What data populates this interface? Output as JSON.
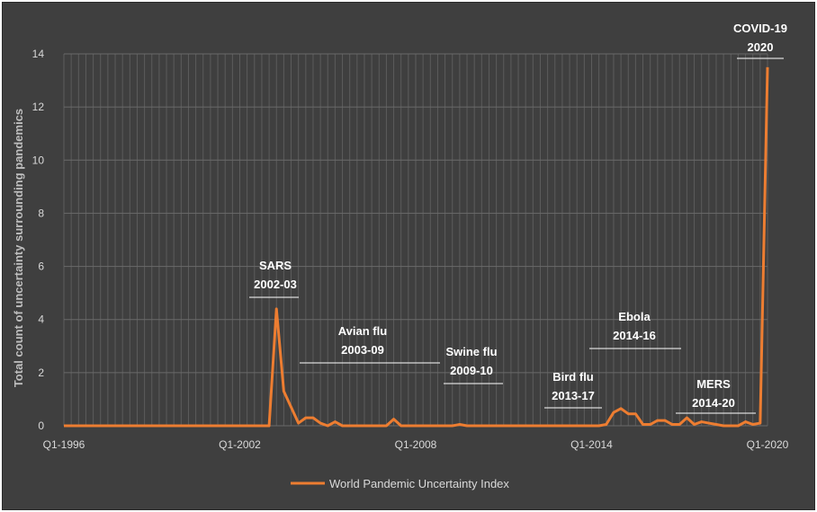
{
  "chart_data": {
    "type": "line",
    "ylabel": "Total count of uncertainty surrounding pandemics",
    "xlabel": "",
    "ylim": [
      0,
      14
    ],
    "yticks": [
      0,
      2,
      4,
      6,
      8,
      10,
      12,
      14
    ],
    "xtick_labels": [
      "Q1-1996",
      "Q1-2002",
      "Q1-2008",
      "Q1-2014",
      "Q1-2020"
    ],
    "xtick_quarter_index": [
      0,
      24,
      48,
      72,
      96
    ],
    "grid": "vertical and horizontal",
    "legend_position": "bottom",
    "line_color": "#ed7d31",
    "series": [
      {
        "name": "World Pandemic Uncertainty Index",
        "x": [
          "Q1-1996",
          "Q2-1996",
          "Q3-1996",
          "Q4-1996",
          "Q1-1997",
          "Q2-1997",
          "Q3-1997",
          "Q4-1997",
          "Q1-1998",
          "Q2-1998",
          "Q3-1998",
          "Q4-1998",
          "Q1-1999",
          "Q2-1999",
          "Q3-1999",
          "Q4-1999",
          "Q1-2000",
          "Q2-2000",
          "Q3-2000",
          "Q4-2000",
          "Q1-2001",
          "Q2-2001",
          "Q3-2001",
          "Q4-2001",
          "Q1-2002",
          "Q2-2002",
          "Q3-2002",
          "Q4-2002",
          "Q1-2003",
          "Q2-2003",
          "Q3-2003",
          "Q4-2003",
          "Q1-2004",
          "Q2-2004",
          "Q3-2004",
          "Q4-2004",
          "Q1-2005",
          "Q2-2005",
          "Q3-2005",
          "Q4-2005",
          "Q1-2006",
          "Q2-2006",
          "Q3-2006",
          "Q4-2006",
          "Q1-2007",
          "Q2-2007",
          "Q3-2007",
          "Q4-2007",
          "Q1-2008",
          "Q2-2008",
          "Q3-2008",
          "Q4-2008",
          "Q1-2009",
          "Q2-2009",
          "Q3-2009",
          "Q4-2009",
          "Q1-2010",
          "Q2-2010",
          "Q3-2010",
          "Q4-2010",
          "Q1-2011",
          "Q2-2011",
          "Q3-2011",
          "Q4-2011",
          "Q1-2012",
          "Q2-2012",
          "Q3-2012",
          "Q4-2012",
          "Q1-2013",
          "Q2-2013",
          "Q3-2013",
          "Q4-2013",
          "Q1-2014",
          "Q2-2014",
          "Q3-2014",
          "Q4-2014",
          "Q1-2015",
          "Q2-2015",
          "Q3-2015",
          "Q4-2015",
          "Q1-2016",
          "Q2-2016",
          "Q3-2016",
          "Q4-2016",
          "Q1-2017",
          "Q2-2017",
          "Q3-2017",
          "Q4-2017",
          "Q1-2018",
          "Q2-2018",
          "Q3-2018",
          "Q4-2018",
          "Q1-2019",
          "Q2-2019",
          "Q3-2019",
          "Q4-2019",
          "Q1-2020"
        ],
        "values": [
          0,
          0,
          0,
          0,
          0,
          0,
          0,
          0,
          0,
          0,
          0,
          0,
          0,
          0,
          0,
          0,
          0,
          0,
          0,
          0,
          0,
          0,
          0,
          0,
          0,
          0,
          0,
          0,
          0,
          4.4,
          1.3,
          0.7,
          0.1,
          0.3,
          0.3,
          0.1,
          0,
          0.15,
          0,
          0,
          0,
          0,
          0,
          0,
          0,
          0.25,
          0,
          0,
          0,
          0,
          0,
          0,
          0,
          0,
          0.05,
          0,
          0,
          0,
          0,
          0,
          0,
          0,
          0,
          0,
          0,
          0,
          0,
          0,
          0,
          0,
          0,
          0,
          0,
          0,
          0.05,
          0.5,
          0.65,
          0.45,
          0.45,
          0.05,
          0.05,
          0.2,
          0.2,
          0.05,
          0.05,
          0.3,
          0.05,
          0.15,
          0.1,
          0.05,
          0,
          0,
          0,
          0.15,
          0.05,
          0.1,
          13.5
        ]
      }
    ],
    "annotations": [
      {
        "line1": "SARS",
        "line2": "2002-03"
      },
      {
        "line1": "Avian flu",
        "line2": "2003-09"
      },
      {
        "line1": "Swine flu",
        "line2": "2009-10"
      },
      {
        "line1": "Bird flu",
        "line2": "2013-17"
      },
      {
        "line1": "Ebola",
        "line2": "2014-16"
      },
      {
        "line1": "MERS",
        "line2": "2014-20"
      },
      {
        "line1": "COVID-19",
        "line2": "2020"
      }
    ]
  }
}
